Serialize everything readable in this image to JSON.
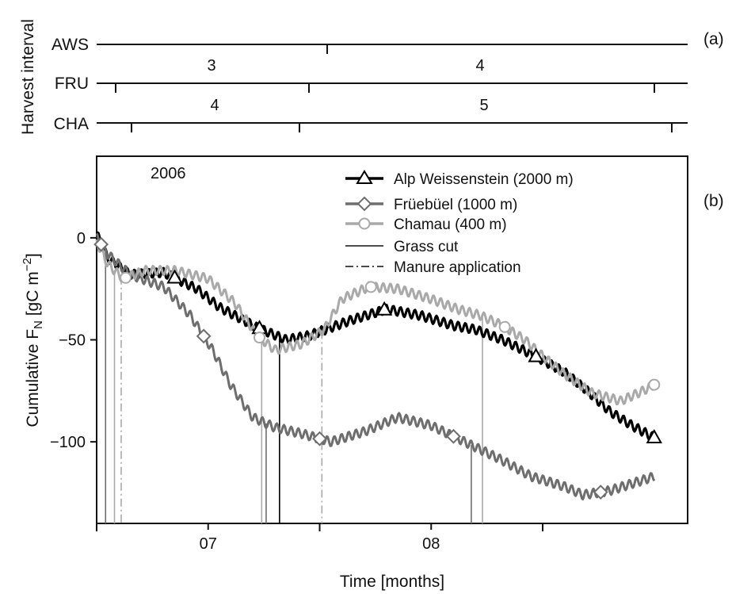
{
  "colors": {
    "aws": "#000000",
    "fru": "#6e6e6e",
    "cha": "#a9a9a9",
    "axis": "#111111"
  },
  "chart_data": [
    {
      "type": "line",
      "panel_label": "(a)",
      "ylabel": "Harvest interval",
      "rows": [
        {
          "name": "AWS",
          "interval_labels": [],
          "interval_label_x": []
        },
        {
          "name": "FRU",
          "interval_labels": [
            "3",
            "4"
          ],
          "interval_label_x": [
            6.75,
            7.6
          ]
        },
        {
          "name": "CHA",
          "interval_labels": [
            "4",
            "5"
          ],
          "interval_label_x": [
            6.77,
            7.6
          ]
        }
      ]
    },
    {
      "type": "line",
      "panel_label": "(b)",
      "annotation": "2006",
      "xlabel": "Time [months]",
      "ylabel_main": "Cumulative F",
      "ylabel_sub": "N",
      "ylabel_unit": " [gC m",
      "ylabel_sup": "−2",
      "ylabel_end": "]",
      "xlim": [
        6.0,
        8.65
      ],
      "ylim": [
        -140,
        40
      ],
      "xticks": [
        {
          "value": 6.5,
          "label": "07"
        },
        {
          "value": 7.5,
          "label": "08"
        }
      ],
      "yticks": [
        {
          "value": 0,
          "label": "0"
        },
        {
          "value": -50,
          "label": "−50"
        },
        {
          "value": -100,
          "label": "−100"
        }
      ],
      "series": [
        {
          "name": "Alp Weissenstein (2000 m)",
          "marker": "triangle",
          "keypoints": [
            [
              6.0,
              2
            ],
            [
              6.05,
              -10
            ],
            [
              6.15,
              -18
            ],
            [
              6.3,
              -17
            ],
            [
              6.45,
              -25
            ],
            [
              6.55,
              -34
            ],
            [
              6.72,
              -44
            ],
            [
              6.85,
              -50
            ],
            [
              6.95,
              -48
            ],
            [
              7.05,
              -44
            ],
            [
              7.15,
              -40
            ],
            [
              7.3,
              -35
            ],
            [
              7.45,
              -38
            ],
            [
              7.6,
              -43
            ],
            [
              7.7,
              -45
            ],
            [
              7.82,
              -50
            ],
            [
              7.95,
              -57
            ],
            [
              8.1,
              -66
            ],
            [
              8.2,
              -75
            ],
            [
              8.3,
              -85
            ],
            [
              8.4,
              -92
            ],
            [
              8.5,
              -98
            ]
          ],
          "marker_x": [
            6.35,
            6.73,
            7.29,
            7.97,
            8.5
          ]
        },
        {
          "name": "Früebüel (1000 m)",
          "marker": "diamond",
          "keypoints": [
            [
              6.0,
              0
            ],
            [
              6.05,
              -8
            ],
            [
              6.15,
              -18
            ],
            [
              6.3,
              -24
            ],
            [
              6.42,
              -38
            ],
            [
              6.52,
              -55
            ],
            [
              6.6,
              -72
            ],
            [
              6.7,
              -88
            ],
            [
              6.8,
              -93
            ],
            [
              6.92,
              -96
            ],
            [
              7.05,
              -100
            ],
            [
              7.2,
              -95
            ],
            [
              7.35,
              -88
            ],
            [
              7.5,
              -92
            ],
            [
              7.65,
              -100
            ],
            [
              7.8,
              -108
            ],
            [
              7.95,
              -117
            ],
            [
              8.1,
              -122
            ],
            [
              8.18,
              -126
            ],
            [
              8.3,
              -124
            ],
            [
              8.5,
              -117
            ]
          ],
          "marker_x": [
            6.02,
            6.48,
            7.0,
            7.6,
            8.26
          ]
        },
        {
          "name": "Chamau (400 m)",
          "marker": "circle",
          "keypoints": [
            [
              6.0,
              -2
            ],
            [
              6.05,
              -13
            ],
            [
              6.12,
              -20
            ],
            [
              6.22,
              -16
            ],
            [
              6.35,
              -16
            ],
            [
              6.5,
              -20
            ],
            [
              6.62,
              -32
            ],
            [
              6.72,
              -48
            ],
            [
              6.8,
              -55
            ],
            [
              6.92,
              -52
            ],
            [
              7.02,
              -45
            ],
            [
              7.1,
              -30
            ],
            [
              7.22,
              -24
            ],
            [
              7.35,
              -25
            ],
            [
              7.5,
              -30
            ],
            [
              7.62,
              -35
            ],
            [
              7.72,
              -38
            ],
            [
              7.82,
              -43
            ],
            [
              7.92,
              -50
            ],
            [
              8.0,
              -58
            ],
            [
              8.1,
              -67
            ],
            [
              8.22,
              -76
            ],
            [
              8.35,
              -80
            ],
            [
              8.45,
              -75
            ],
            [
              8.5,
              -72
            ]
          ],
          "marker_x": [
            6.13,
            6.73,
            7.23,
            7.83,
            8.5
          ]
        }
      ],
      "grass_cuts": [
        {
          "site": "FRU",
          "x": 6.04
        },
        {
          "site": "CHA",
          "x": 6.08
        },
        {
          "site": "CHA",
          "x": 6.74
        },
        {
          "site": "FRU",
          "x": 6.76
        },
        {
          "site": "AWS",
          "x": 6.82
        },
        {
          "site": "FRU",
          "x": 7.68
        },
        {
          "site": "CHA",
          "x": 7.73
        }
      ],
      "manure_applications": [
        {
          "site": "CHA",
          "x": 6.11
        },
        {
          "site": "CHA",
          "x": 7.01
        }
      ],
      "legend": [
        {
          "label": "Alp Weissenstein (2000 m)",
          "style": "aws"
        },
        {
          "label": "Früebüel (1000 m)",
          "style": "fru"
        },
        {
          "label": "Chamau (400 m)",
          "style": "cha"
        },
        {
          "label": "Grass cut",
          "style": "solid"
        },
        {
          "label": "Manure application",
          "style": "dashdot"
        }
      ],
      "legend_position": "top-right"
    }
  ]
}
